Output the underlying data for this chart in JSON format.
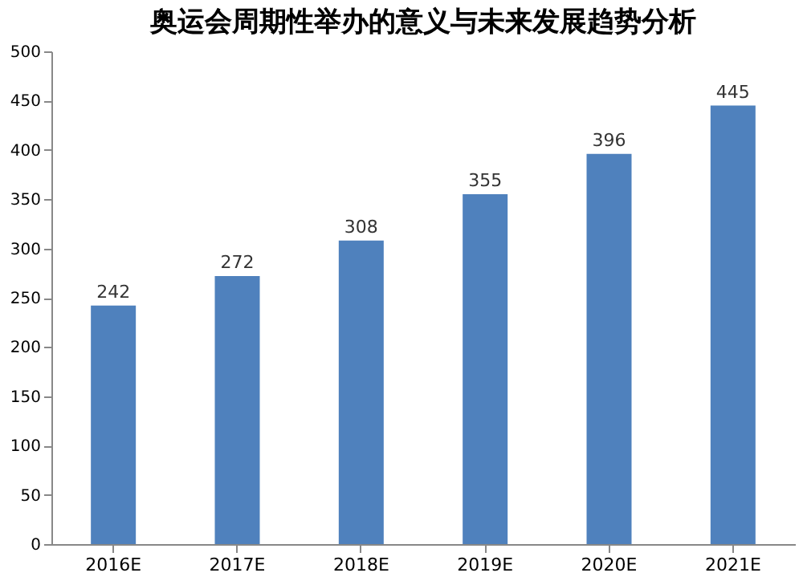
{
  "chart_data": {
    "type": "bar",
    "title": "奥运会周期性举办的意义与未来发展趋势分析",
    "categories": [
      "2016E",
      "2017E",
      "2018E",
      "2019E",
      "2020E",
      "2021E"
    ],
    "values": [
      242,
      272,
      308,
      355,
      396,
      445
    ],
    "color": "#4f81bd",
    "ylim": [
      0,
      500
    ],
    "yticks": [
      0,
      50,
      100,
      150,
      200,
      250,
      300,
      350,
      400,
      450,
      500
    ],
    "grid": false,
    "data_labels": true
  }
}
